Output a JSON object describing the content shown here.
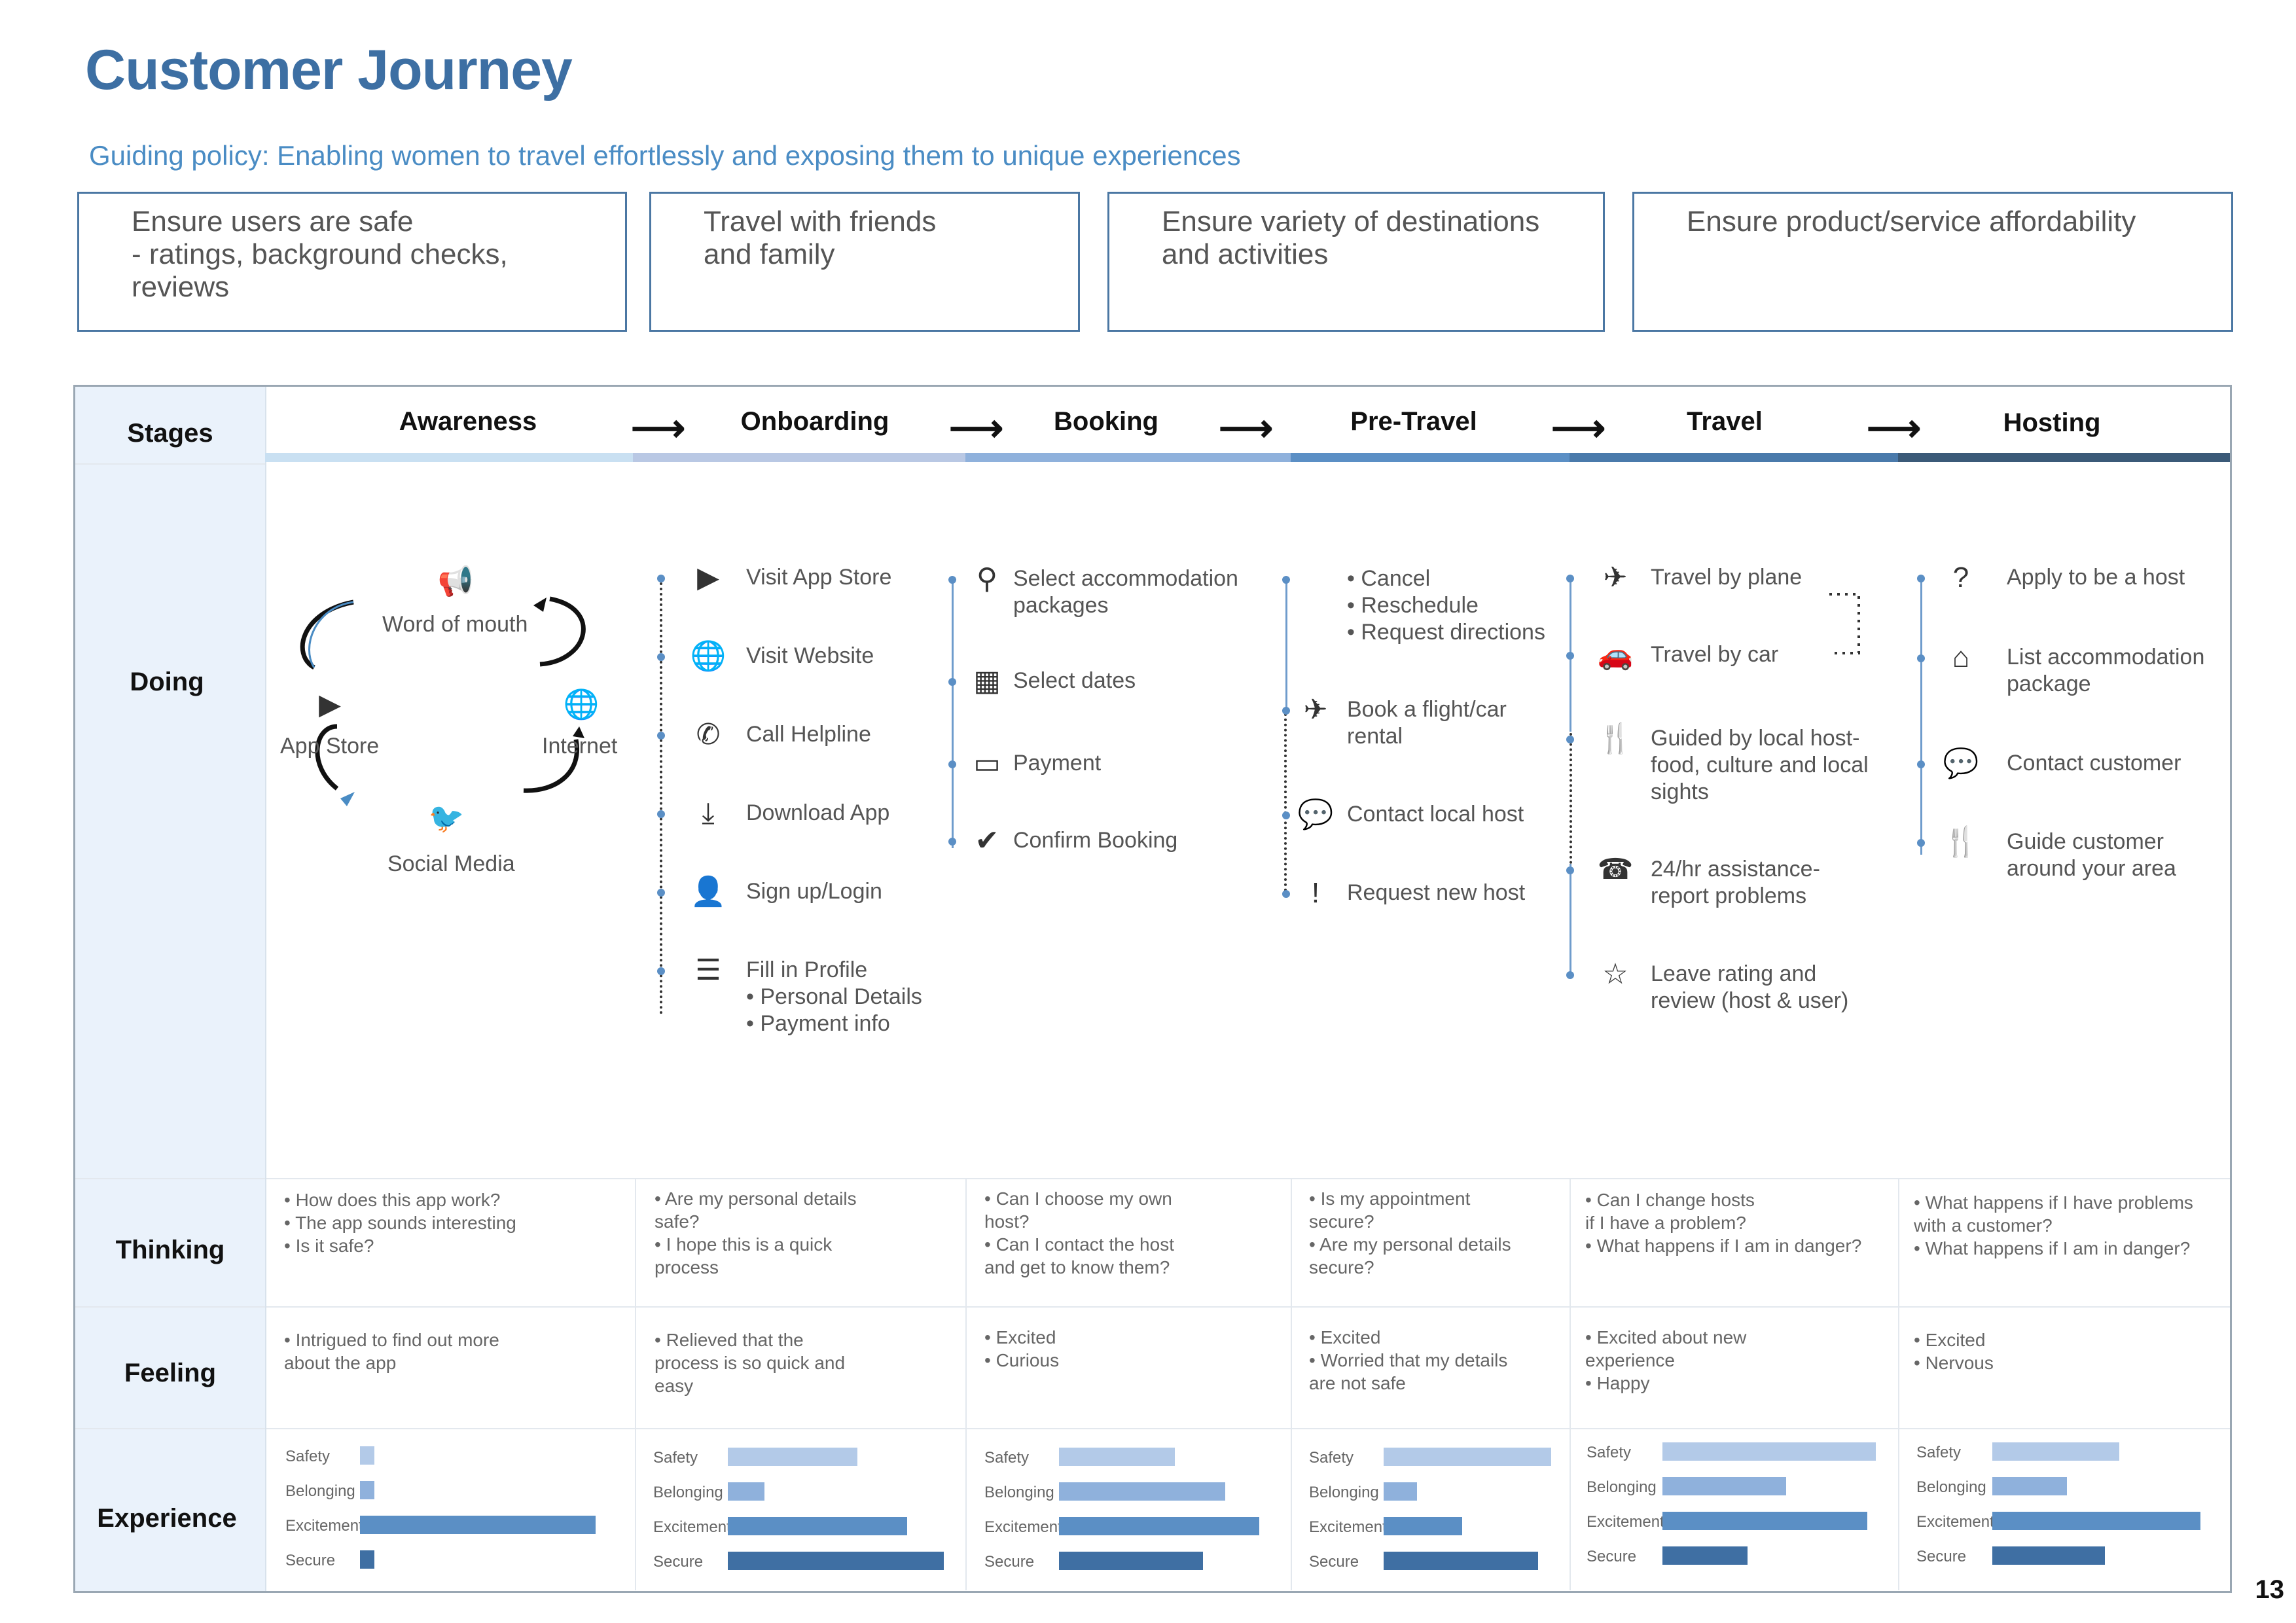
{
  "title": "Customer Journey",
  "policy": "Guiding policy: Enabling women to travel effortlessly and exposing them to unique experiences",
  "goals": [
    "Ensure users are safe\n- ratings, background checks,\nreviews",
    "Travel with friends\nand family",
    "Ensure variety of destinations\nand activities",
    "Ensure product/service affordability"
  ],
  "rows": {
    "stages": "Stages",
    "doing": "Doing",
    "thinking": "Thinking",
    "feeling": "Feeling",
    "experience": "Experience"
  },
  "stages": [
    "Awareness",
    "Onboarding",
    "Booking",
    "Pre-Travel",
    "Travel",
    "Hosting"
  ],
  "stage_colors": [
    "#c9e0f2",
    "#b9c8e4",
    "#8fb1dc",
    "#5b8fc5",
    "#4a7aab",
    "#3b5a78"
  ],
  "awareness": {
    "word_of_mouth": "Word of mouth",
    "app_store": "App Store",
    "internet": "Internet",
    "social_media": "Social Media"
  },
  "onboarding": [
    {
      "icon": "play-icon",
      "glyph": "▶",
      "label": "Visit App Store"
    },
    {
      "icon": "globe-icon",
      "glyph": "🌐",
      "label": "Visit Website"
    },
    {
      "icon": "phone-icon",
      "glyph": "✆",
      "label": "Call Helpline"
    },
    {
      "icon": "download-icon",
      "glyph": "⤓",
      "label": "Download App"
    },
    {
      "icon": "user-icon",
      "glyph": "👤",
      "label": "Sign up/Login"
    },
    {
      "icon": "checklist-icon",
      "glyph": "☰",
      "label": "Fill in Profile\n• Personal Details\n• Payment info"
    }
  ],
  "booking": [
    {
      "icon": "search-icon",
      "glyph": "⚲",
      "label": "Select accommodation\npackages"
    },
    {
      "icon": "calendar-icon",
      "glyph": "▦",
      "label": "Select dates"
    },
    {
      "icon": "card-icon",
      "glyph": "▭",
      "label": "Payment"
    },
    {
      "icon": "check-icon",
      "glyph": "✔",
      "label": "Confirm Booking"
    }
  ],
  "pretravel": [
    {
      "icon": "",
      "glyph": "",
      "label": "• Cancel\n• Reschedule\n• Request directions"
    },
    {
      "icon": "plane-icon",
      "glyph": "✈",
      "label": "Book a flight/car\nrental"
    },
    {
      "icon": "chat-icon",
      "glyph": "💬",
      "label": "Contact local host"
    },
    {
      "icon": "exclamation-icon",
      "glyph": "!",
      "label": "Request new host"
    }
  ],
  "travel": [
    {
      "icon": "plane-icon",
      "glyph": "✈",
      "label": "Travel by plane"
    },
    {
      "icon": "car-icon",
      "glyph": "🚗",
      "label": "Travel by car"
    },
    {
      "icon": "fork-knife-icon",
      "glyph": "🍴",
      "label": "Guided by local host-\nfood, culture and local\nsights"
    },
    {
      "icon": "support-icon",
      "glyph": "☎",
      "label": "24/hr assistance-\nreport problems"
    },
    {
      "icon": "star-icon",
      "glyph": "☆",
      "label": "Leave rating and\nreview (host & user)"
    }
  ],
  "hosting": [
    {
      "icon": "question-icon",
      "glyph": "?",
      "label": "Apply to be a host"
    },
    {
      "icon": "home-icon",
      "glyph": "⌂",
      "label": "List accommodation\npackage"
    },
    {
      "icon": "chat-icon",
      "glyph": "💬",
      "label": "Contact customer"
    },
    {
      "icon": "fork-knife-icon",
      "glyph": "🍴",
      "label": "Guide customer\naround your area"
    }
  ],
  "thinking": [
    "• How does this app work?\n• The app sounds interesting\n• Is it safe?",
    "• Are my personal details\n   safe?\n• I hope this is a quick\n   process",
    "• Can I choose my own\n   host?\n• Can I contact the host\n   and get to know them?",
    "• Is my appointment\n   secure?\n• Are my personal details\n   secure?",
    "• Can I change hosts\n   if I have a problem?\n• What happens if I am in danger?",
    "• What happens if I have problems\n   with a customer?\n• What happens if I am in danger?"
  ],
  "feeling": [
    "• Intrigued to find out more\n   about the app",
    "• Relieved that the\n   process is so quick and\n   easy",
    "• Excited\n• Curious",
    "• Excited\n• Worried that my details\n   are not safe",
    "• Excited about new\n   experience\n• Happy",
    "• Excited\n• Nervous"
  ],
  "experience_labels": [
    "Safety",
    "Belonging",
    "Excitement",
    "Secure"
  ],
  "experience_colors": [
    "#b3cae8",
    "#8fb1dc",
    "#5b8fc5",
    "#3f6fa3"
  ],
  "experience_values": [
    [
      0.06,
      0.06,
      1.0,
      0.06
    ],
    [
      0.6,
      0.17,
      0.83,
      1.0
    ],
    [
      0.58,
      0.83,
      1.0,
      0.72
    ],
    [
      1.0,
      0.2,
      0.47,
      0.92
    ],
    [
      1.0,
      0.58,
      0.96,
      0.4
    ],
    [
      0.61,
      0.36,
      1.0,
      0.54
    ]
  ],
  "page_number": "13"
}
